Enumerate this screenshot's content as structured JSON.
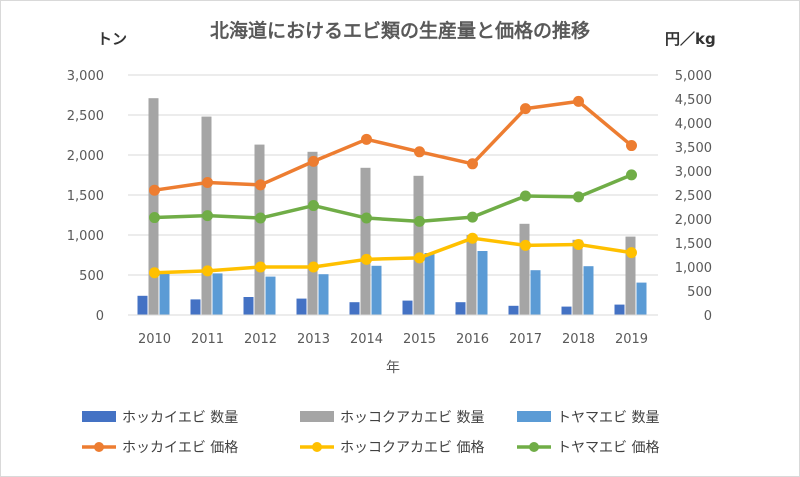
{
  "chart_data": {
    "type": "bar",
    "title": "北海道におけるエビ類の生産量と価格の推移",
    "ylabel": "トン",
    "y2label": "円／kg",
    "xlabel": "年",
    "categories": [
      "2010",
      "2011",
      "2012",
      "2013",
      "2014",
      "2015",
      "2016",
      "2017",
      "2018",
      "2019"
    ],
    "ylim": [
      0,
      3000
    ],
    "y2lim": [
      0,
      5000
    ],
    "yticks": [
      "0",
      "500",
      "1,000",
      "1,500",
      "2,000",
      "2,500",
      "3,000"
    ],
    "y2ticks": [
      "0",
      "500",
      "1,000",
      "1,500",
      "2,000",
      "2,500",
      "3,000",
      "3,500",
      "4,000",
      "4,500",
      "5,000"
    ],
    "grid": true,
    "legend_position": "bottom",
    "bar_series": [
      {
        "name": "ホッカイエビ 数量",
        "color": "#4472c4",
        "values": [
          240,
          195,
          225,
          205,
          160,
          180,
          160,
          115,
          105,
          130
        ]
      },
      {
        "name": "ホッコクアカエビ 数量",
        "color": "#a5a5a5",
        "values": [
          2710,
          2480,
          2130,
          2040,
          1840,
          1740,
          1000,
          1140,
          940,
          980
        ]
      },
      {
        "name": "トヤマエビ 数量",
        "color": "#5b9bd5",
        "values": [
          520,
          520,
          480,
          510,
          615,
          775,
          800,
          560,
          610,
          405
        ]
      }
    ],
    "line_series": [
      {
        "name": "ホッカイエビ 価格",
        "color": "#ed7d31",
        "values": [
          2600,
          2760,
          2710,
          3200,
          3660,
          3400,
          3150,
          4300,
          4450,
          3530
        ]
      },
      {
        "name": "ホッコクアカエビ 価格",
        "color": "#ffc000",
        "values": [
          880,
          920,
          1000,
          1000,
          1160,
          1190,
          1600,
          1450,
          1470,
          1300
        ]
      },
      {
        "name": "トヤマエビ 価格",
        "color": "#70ad47",
        "values": [
          2030,
          2070,
          2020,
          2280,
          2020,
          1950,
          2040,
          2480,
          2460,
          2920
        ]
      }
    ]
  }
}
